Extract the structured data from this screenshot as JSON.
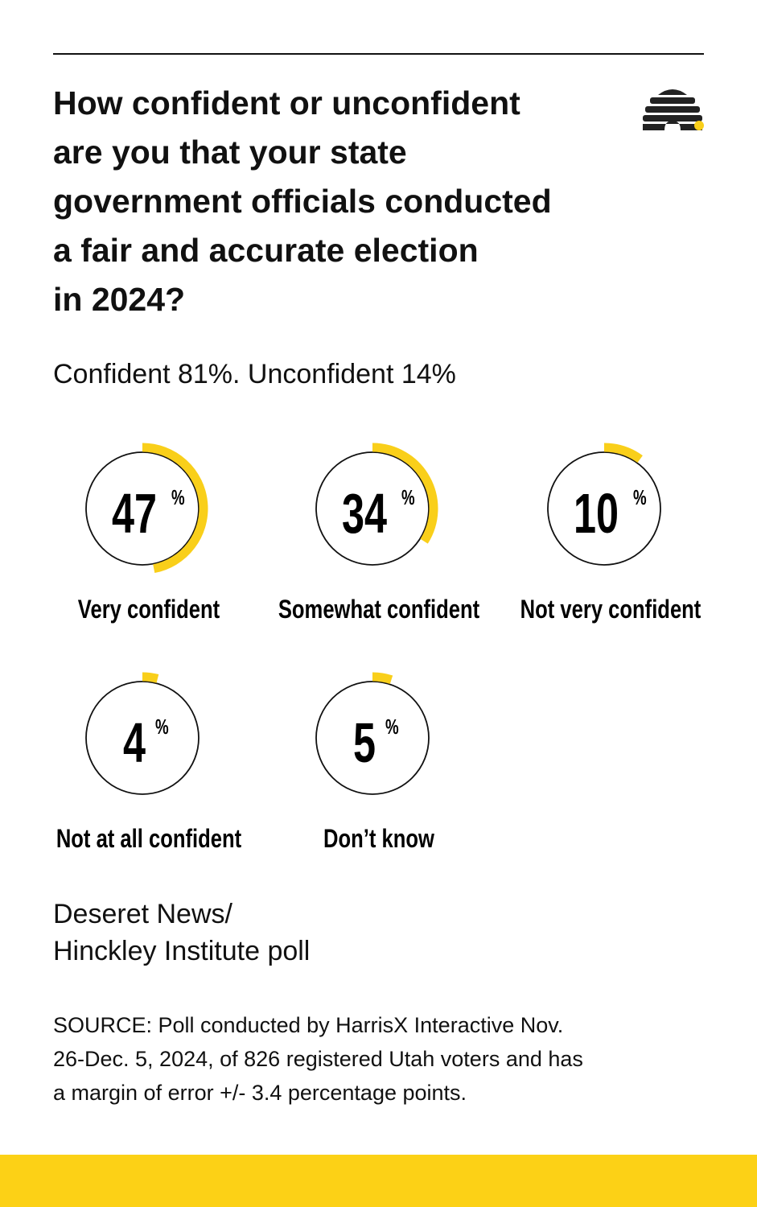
{
  "chart_data": {
    "type": "gauge",
    "title": "How confident or unconfident\nare you that your state\ngovernment officials conducted\na fair and accurate election\nin 2024?",
    "subtitle": "Confident 81%. Unconfident 14%",
    "categories": [
      "Very confident",
      "Somewhat confident",
      "Not very confident",
      "Not at all confident",
      "Don’t know"
    ],
    "values": [
      47,
      34,
      10,
      4,
      5
    ],
    "unit": "%",
    "color": "#f9cf1a",
    "poll": "Deseret News/\nHinckley Institute poll",
    "source": "SOURCE: Poll conducted by HarrisX Interactive Nov.\n26-Dec. 5, 2024, of 826 registered Utah voters and has\na margin of error +/- 3.4 percentage points."
  }
}
